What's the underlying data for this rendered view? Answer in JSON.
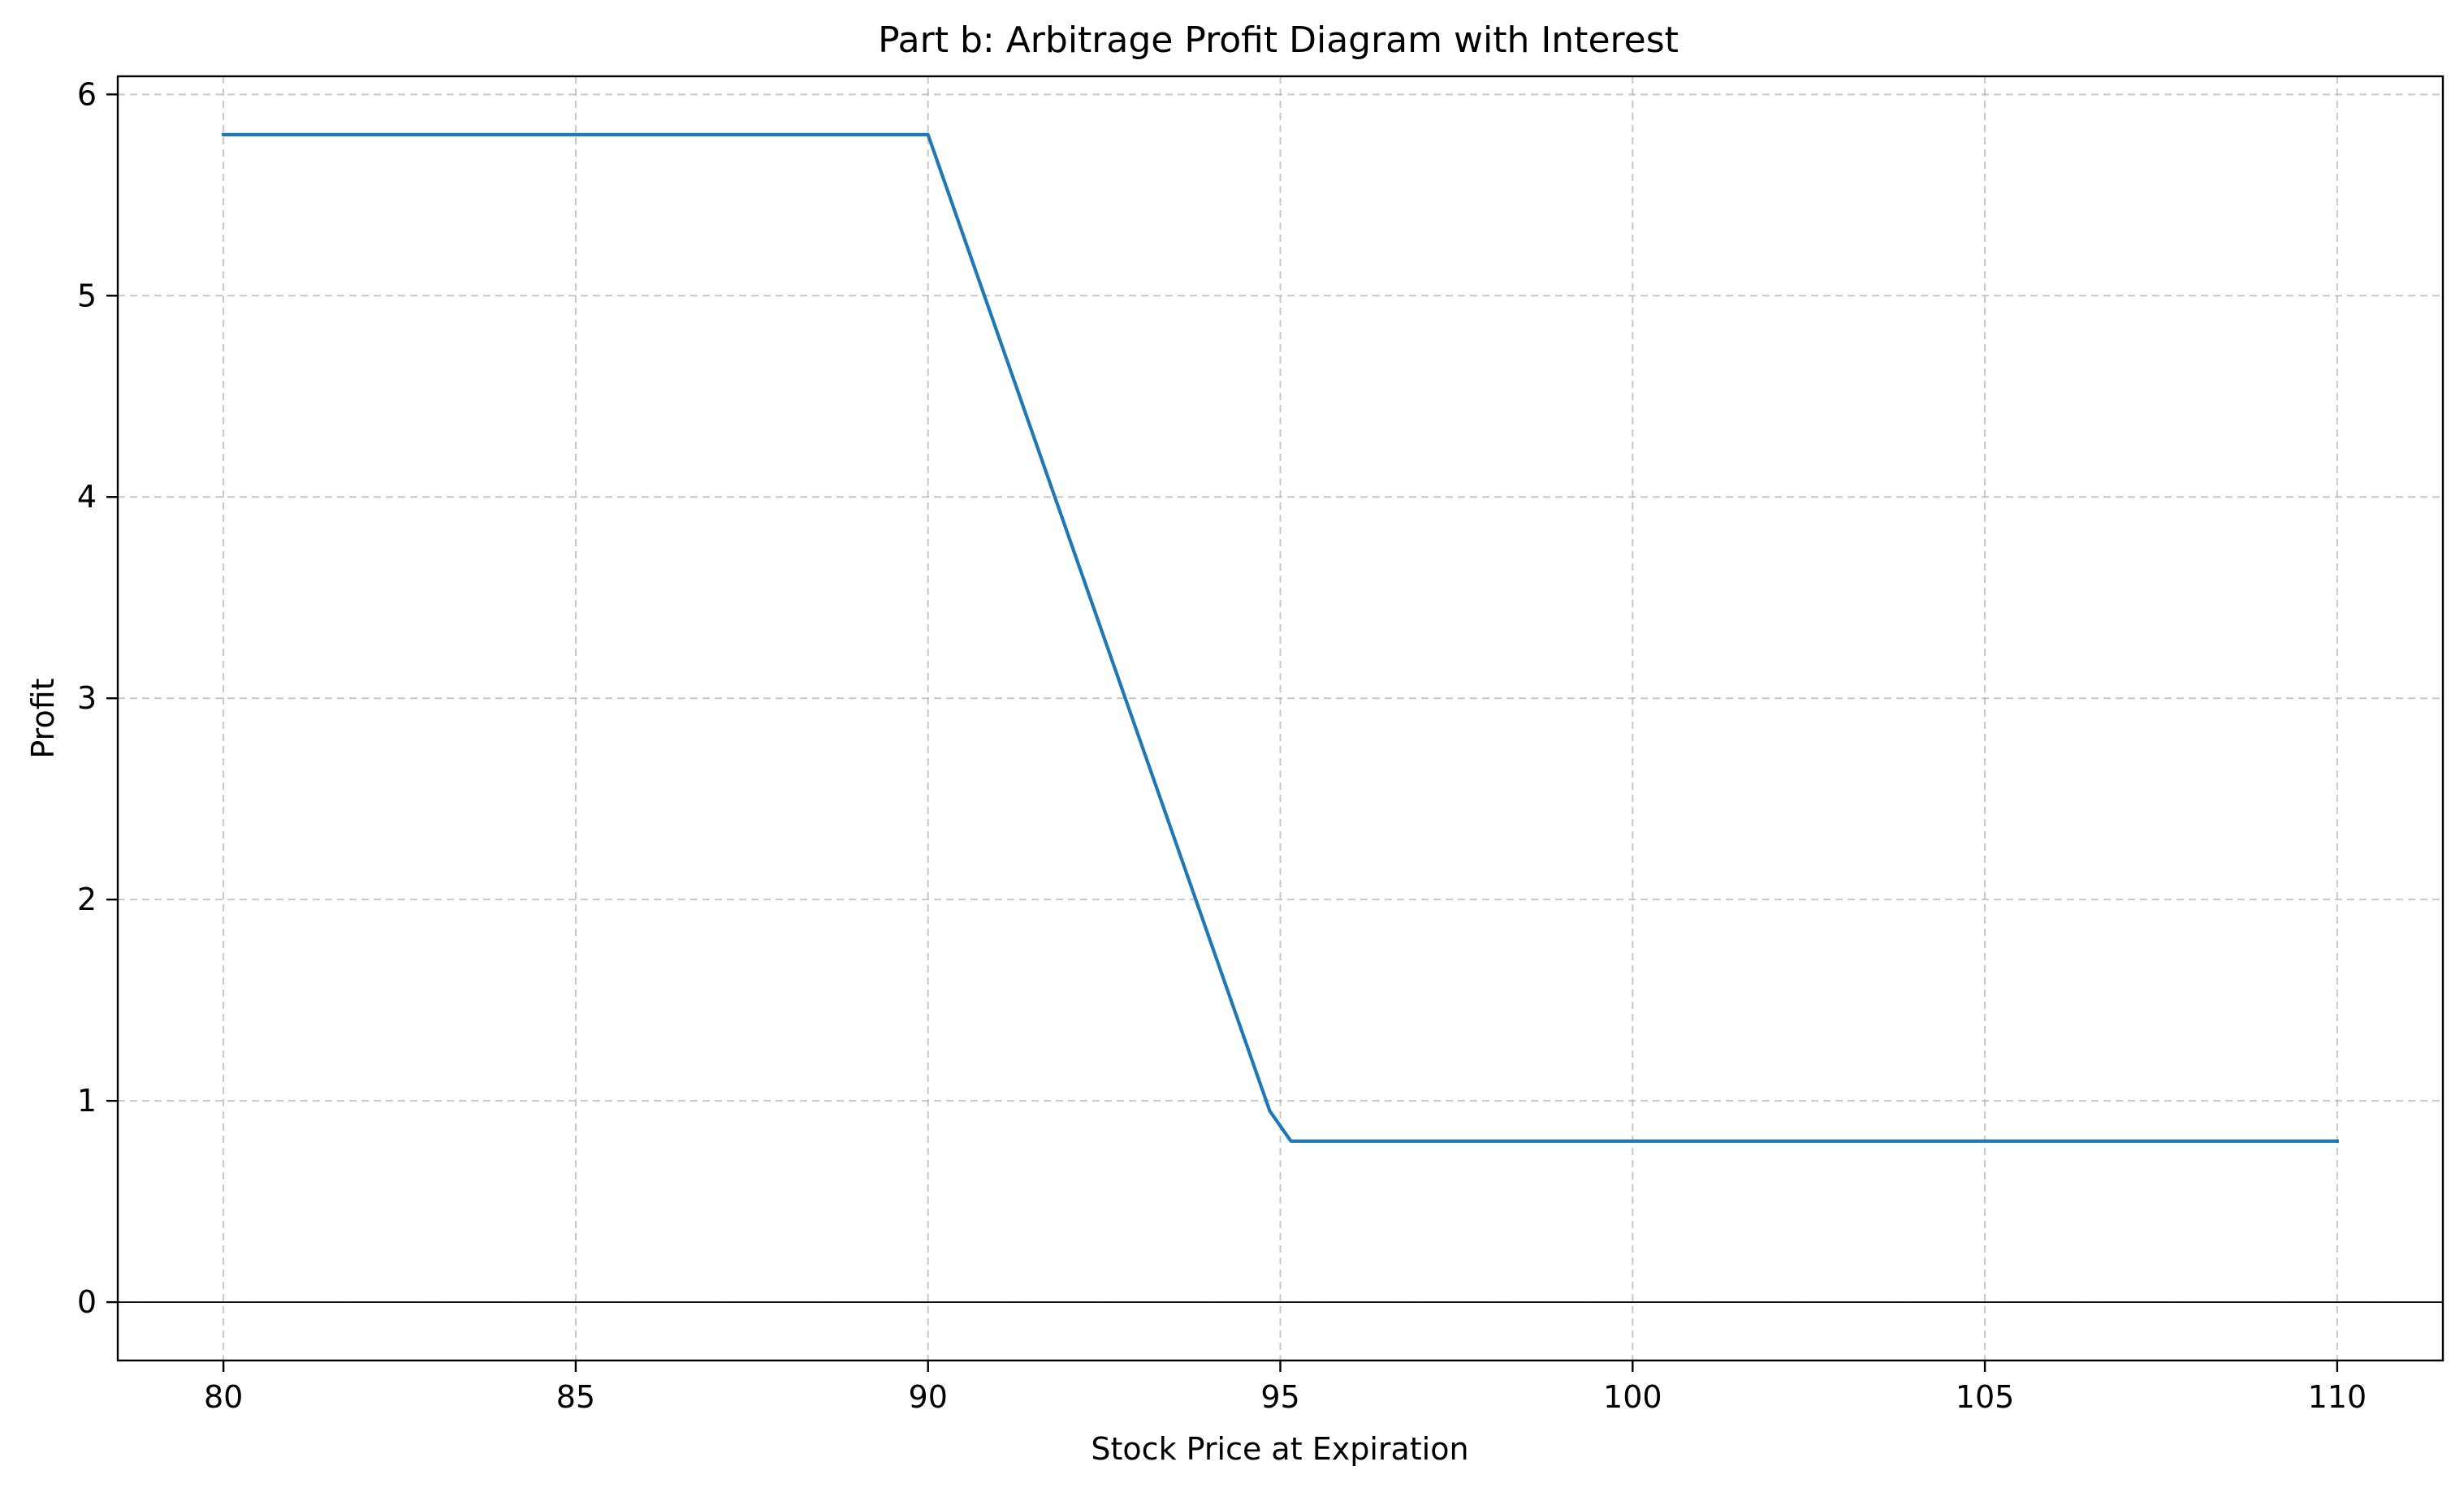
{
  "chart_data": {
    "type": "line",
    "title": "Part b: Arbitrage Profit Diagram with Interest",
    "xlabel": "Stock Price at Expiration",
    "ylabel": "Profit",
    "xlim": [
      78.5,
      111.5
    ],
    "ylim": [
      -0.29,
      6.09
    ],
    "xticks": [
      80,
      85,
      90,
      95,
      100,
      105,
      110
    ],
    "yticks": [
      0,
      1,
      2,
      3,
      4,
      5,
      6
    ],
    "grid": true,
    "zero_line": true,
    "legend": "none",
    "series": [
      {
        "color": "#1f77b4",
        "x": [
          80,
          90,
          94.85,
          95.15,
          110
        ],
        "y": [
          5.8,
          5.8,
          0.95,
          0.8,
          0.8
        ]
      }
    ]
  }
}
